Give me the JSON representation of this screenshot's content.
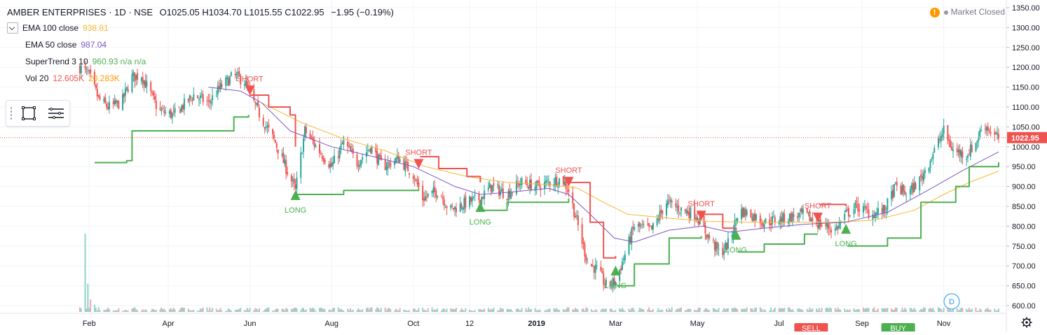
{
  "header": {
    "title": "AMBER ENTERPRISES · 1D · NSE",
    "ohlc": "O1025.05 H1034.70 L1015.55 C1022.95",
    "change": "−1.95 (−0.19%)"
  },
  "indicators": [
    {
      "label": "EMA 100 close",
      "value": "938.81",
      "color": "#f7b733"
    },
    {
      "label": "EMA 50 close",
      "value": "987.04",
      "color": "#7e57c2"
    },
    {
      "label": "SuperTrend 3 10",
      "value": "960.93 n/a n/a",
      "color": "#4caf50"
    },
    {
      "label": "Vol 20",
      "value": "12.605K",
      "value2": "20.283K",
      "color": "#ef5350",
      "color2": "#ff9800"
    }
  ],
  "status": {
    "market_state": "Market Closed",
    "warning_icon": "exclamation-icon"
  },
  "tools": {
    "select_icon": "selection-frame-icon",
    "menu_icon": "hamburger-menu-icon"
  },
  "bottom_tags": [
    {
      "text": "SELL",
      "x_date": "2019-07-25",
      "color": "#ef5350"
    },
    {
      "text": "BUY",
      "x_date": "2019-09-28",
      "color": "#4caf50"
    }
  ],
  "d_badge": {
    "text": "D",
    "color": "#2196f3"
  },
  "chart_data": {
    "type": "candlestick",
    "title": "AMBER ENTERPRISES · 1D · NSE",
    "x_range": [
      "2018-01-24",
      "2019-12-12"
    ],
    "x_tick_labels": [
      {
        "label": "Feb",
        "date": "2018-02-01"
      },
      {
        "label": "Apr",
        "date": "2018-04-01"
      },
      {
        "label": "Jun",
        "date": "2018-06-01"
      },
      {
        "label": "Aug",
        "date": "2018-08-01"
      },
      {
        "label": "Oct",
        "date": "2018-10-01"
      },
      {
        "label": "12",
        "date": "2018-11-12"
      },
      {
        "label": "2019",
        "date": "2019-01-01"
      },
      {
        "label": "Mar",
        "date": "2019-03-01"
      },
      {
        "label": "May",
        "date": "2019-05-01"
      },
      {
        "label": "Jul",
        "date": "2019-07-01"
      },
      {
        "label": "Sep",
        "date": "2019-09-01"
      },
      {
        "label": "Nov",
        "date": "2019-11-01"
      }
    ],
    "y_range": [
      585,
      1360
    ],
    "y_ticks": [
      600,
      650,
      700,
      750,
      800,
      850,
      900,
      950,
      1000,
      1050,
      1100,
      1150,
      1200,
      1250,
      1300,
      1350
    ],
    "last_price": 1022.95,
    "last_price_label": "1022.95",
    "price_path": [
      [
        "2018-01-25",
        1200
      ],
      [
        "2018-02-01",
        1180
      ],
      [
        "2018-02-08",
        1120
      ],
      [
        "2018-02-15",
        1100
      ],
      [
        "2018-02-25",
        1110
      ],
      [
        "2018-03-05",
        1175
      ],
      [
        "2018-03-12",
        1180
      ],
      [
        "2018-03-25",
        1090
      ],
      [
        "2018-04-05",
        1080
      ],
      [
        "2018-04-20",
        1130
      ],
      [
        "2018-05-01",
        1110
      ],
      [
        "2018-05-10",
        1150
      ],
      [
        "2018-05-20",
        1180
      ],
      [
        "2018-05-28",
        1165
      ],
      [
        "2018-06-01",
        1130
      ],
      [
        "2018-06-10",
        1070
      ],
      [
        "2018-06-20",
        1010
      ],
      [
        "2018-07-05",
        890
      ],
      [
        "2018-07-12",
        1040
      ],
      [
        "2018-07-25",
        980
      ],
      [
        "2018-08-01",
        950
      ],
      [
        "2018-08-10",
        1010
      ],
      [
        "2018-08-20",
        960
      ],
      [
        "2018-08-30",
        1000
      ],
      [
        "2018-09-08",
        950
      ],
      [
        "2018-09-20",
        970
      ],
      [
        "2018-10-01",
        930
      ],
      [
        "2018-10-08",
        870
      ],
      [
        "2018-10-20",
        890
      ],
      [
        "2018-10-28",
        840
      ],
      [
        "2018-11-10",
        860
      ],
      [
        "2018-11-20",
        870
      ],
      [
        "2018-11-28",
        900
      ],
      [
        "2018-12-10",
        880
      ],
      [
        "2018-12-20",
        910
      ],
      [
        "2019-01-01",
        900
      ],
      [
        "2019-01-10",
        910
      ],
      [
        "2019-01-20",
        920
      ],
      [
        "2019-01-25",
        890
      ],
      [
        "2019-02-01",
        800
      ],
      [
        "2019-02-08",
        710
      ],
      [
        "2019-02-15",
        690
      ],
      [
        "2019-02-22",
        650
      ],
      [
        "2019-03-01",
        660
      ],
      [
        "2019-03-08",
        730
      ],
      [
        "2019-03-15",
        800
      ],
      [
        "2019-03-28",
        790
      ],
      [
        "2019-04-08",
        860
      ],
      [
        "2019-04-20",
        840
      ],
      [
        "2019-04-30",
        830
      ],
      [
        "2019-05-08",
        780
      ],
      [
        "2019-05-18",
        730
      ],
      [
        "2019-05-25",
        760
      ],
      [
        "2019-06-01",
        840
      ],
      [
        "2019-06-10",
        830
      ],
      [
        "2019-06-20",
        810
      ],
      [
        "2019-07-05",
        820
      ],
      [
        "2019-07-20",
        830
      ],
      [
        "2019-07-28",
        810
      ],
      [
        "2019-08-05",
        800
      ],
      [
        "2019-08-12",
        790
      ],
      [
        "2019-08-20",
        830
      ],
      [
        "2019-08-28",
        850
      ],
      [
        "2019-09-08",
        830
      ],
      [
        "2019-09-18",
        840
      ],
      [
        "2019-09-26",
        900
      ],
      [
        "2019-10-05",
        880
      ],
      [
        "2019-10-15",
        920
      ],
      [
        "2019-10-25",
        990
      ],
      [
        "2019-11-01",
        1040
      ],
      [
        "2019-11-08",
        990
      ],
      [
        "2019-11-18",
        980
      ],
      [
        "2019-11-25",
        1010
      ],
      [
        "2019-12-01",
        1060
      ],
      [
        "2019-12-08",
        1030
      ],
      [
        "2019-12-12",
        1022
      ]
    ],
    "ema_100": [
      [
        "2018-06-10",
        1110
      ],
      [
        "2018-07-10",
        1060
      ],
      [
        "2018-08-10",
        1020
      ],
      [
        "2018-09-10",
        990
      ],
      [
        "2018-10-10",
        950
      ],
      [
        "2018-11-10",
        925
      ],
      [
        "2018-12-10",
        910
      ],
      [
        "2019-01-10",
        905
      ],
      [
        "2019-02-01",
        895
      ],
      [
        "2019-02-20",
        860
      ],
      [
        "2019-03-10",
        830
      ],
      [
        "2019-04-10",
        820
      ],
      [
        "2019-05-10",
        812
      ],
      [
        "2019-06-10",
        810
      ],
      [
        "2019-07-10",
        810
      ],
      [
        "2019-08-10",
        810
      ],
      [
        "2019-09-10",
        815
      ],
      [
        "2019-10-10",
        840
      ],
      [
        "2019-11-01",
        880
      ],
      [
        "2019-11-20",
        910
      ],
      [
        "2019-12-12",
        938.81
      ]
    ],
    "ema_50": [
      [
        "2018-05-01",
        1150
      ],
      [
        "2018-05-25",
        1140
      ],
      [
        "2018-06-10",
        1110
      ],
      [
        "2018-07-01",
        1040
      ],
      [
        "2018-08-01",
        1000
      ],
      [
        "2018-09-01",
        975
      ],
      [
        "2018-10-01",
        950
      ],
      [
        "2018-11-01",
        900
      ],
      [
        "2018-11-20",
        880
      ],
      [
        "2018-12-10",
        885
      ],
      [
        "2019-01-10",
        895
      ],
      [
        "2019-01-25",
        880
      ],
      [
        "2019-02-10",
        830
      ],
      [
        "2019-02-28",
        770
      ],
      [
        "2019-03-15",
        760
      ],
      [
        "2019-04-10",
        790
      ],
      [
        "2019-05-05",
        800
      ],
      [
        "2019-05-25",
        785
      ],
      [
        "2019-06-20",
        795
      ],
      [
        "2019-07-20",
        805
      ],
      [
        "2019-08-20",
        810
      ],
      [
        "2019-09-20",
        835
      ],
      [
        "2019-10-20",
        890
      ],
      [
        "2019-11-15",
        940
      ],
      [
        "2019-12-12",
        987.04
      ]
    ],
    "supertrend": {
      "up_color": "#4caf50",
      "down_color": "#ef5350",
      "segments": [
        {
          "dir": "up",
          "points": [
            [
              "2018-02-05",
              960
            ],
            [
              "2018-03-01",
              965
            ],
            [
              "2018-03-05",
              1040
            ],
            [
              "2018-05-20",
              1075
            ],
            [
              "2018-05-31",
              1080
            ]
          ]
        },
        {
          "dir": "down",
          "points": [
            [
              "2018-06-01",
              1130
            ],
            [
              "2018-06-15",
              1100
            ],
            [
              "2018-07-01",
              1080
            ],
            [
              "2018-07-05",
              1000
            ]
          ]
        },
        {
          "dir": "up",
          "points": [
            [
              "2018-07-06",
              880
            ],
            [
              "2018-08-10",
              890
            ],
            [
              "2018-10-05",
              895
            ]
          ]
        },
        {
          "dir": "down",
          "points": [
            [
              "2018-10-06",
              975
            ],
            [
              "2018-10-20",
              945
            ],
            [
              "2018-11-10",
              925
            ],
            [
              "2018-11-20",
              910
            ]
          ]
        },
        {
          "dir": "up",
          "points": [
            [
              "2018-11-21",
              840
            ],
            [
              "2018-12-10",
              860
            ],
            [
              "2019-01-25",
              870
            ]
          ]
        },
        {
          "dir": "down",
          "points": [
            [
              "2019-01-26",
              910
            ],
            [
              "2019-02-10",
              810
            ],
            [
              "2019-02-20",
              720
            ],
            [
              "2019-03-01",
              725
            ]
          ]
        },
        {
          "dir": "up",
          "points": [
            [
              "2019-03-02",
              650
            ],
            [
              "2019-03-15",
              705
            ],
            [
              "2019-04-10",
              770
            ],
            [
              "2019-05-04",
              775
            ]
          ]
        },
        {
          "dir": "down",
          "points": [
            [
              "2019-05-05",
              830
            ],
            [
              "2019-05-20",
              795
            ],
            [
              "2019-05-30",
              790
            ]
          ]
        },
        {
          "dir": "up",
          "points": [
            [
              "2019-05-31",
              735
            ],
            [
              "2019-06-20",
              755
            ],
            [
              "2019-07-20",
              780
            ],
            [
              "2019-07-30",
              780
            ]
          ]
        },
        {
          "dir": "down",
          "points": [
            [
              "2019-07-31",
              855
            ],
            [
              "2019-08-20",
              850
            ]
          ]
        },
        {
          "dir": "up",
          "points": [
            [
              "2019-08-21",
              750
            ],
            [
              "2019-09-20",
              770
            ],
            [
              "2019-10-15",
              860
            ],
            [
              "2019-11-10",
              900
            ],
            [
              "2019-11-20",
              950
            ],
            [
              "2019-12-12",
              960.93
            ]
          ]
        }
      ]
    },
    "signals": [
      {
        "type": "SHORT",
        "date": "2018-06-01",
        "price": 1140
      },
      {
        "type": "LONG",
        "date": "2018-07-05",
        "price": 880
      },
      {
        "type": "SHORT",
        "date": "2018-10-05",
        "price": 955
      },
      {
        "type": "LONG",
        "date": "2018-11-20",
        "price": 850
      },
      {
        "type": "SHORT",
        "date": "2019-01-25",
        "price": 910
      },
      {
        "type": "LONG",
        "date": "2019-03-01",
        "price": 690
      },
      {
        "type": "SHORT",
        "date": "2019-05-04",
        "price": 825
      },
      {
        "type": "LONG",
        "date": "2019-05-30",
        "price": 780
      },
      {
        "type": "SHORT",
        "date": "2019-07-30",
        "price": 820
      },
      {
        "type": "LONG",
        "date": "2019-08-20",
        "price": 795
      }
    ],
    "volume": {
      "max": 100,
      "spike": [
        [
          "2018-01-29",
          100
        ],
        [
          "2018-01-31",
          36
        ],
        [
          "2018-02-02",
          16
        ],
        [
          "2018-02-05",
          9
        ],
        [
          "2018-02-08",
          6
        ]
      ],
      "baseline_level": 3
    }
  }
}
